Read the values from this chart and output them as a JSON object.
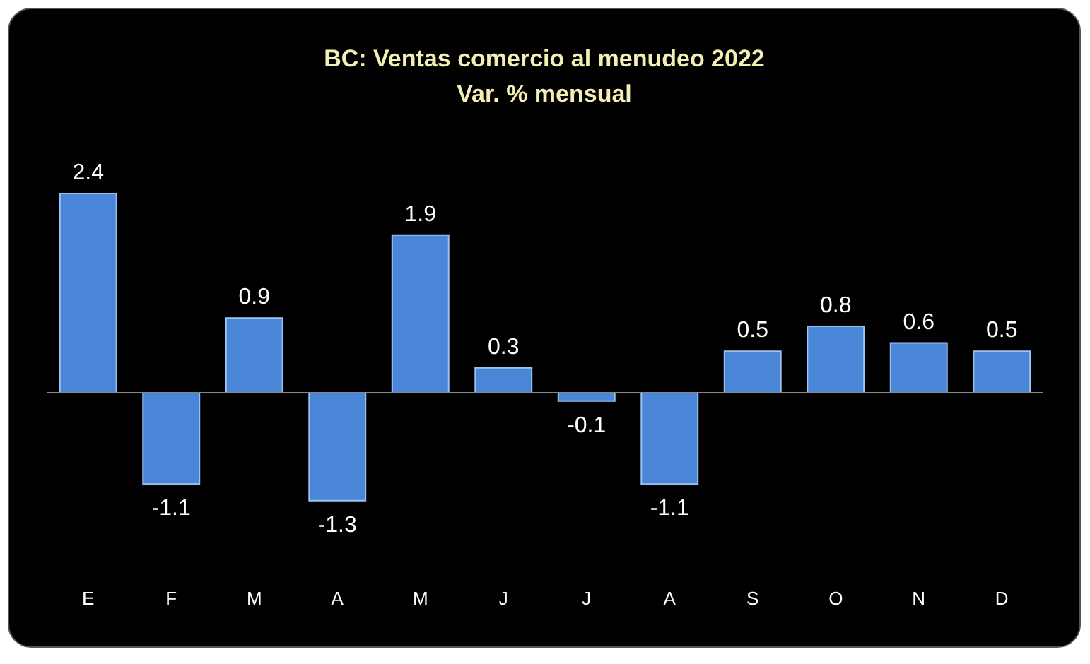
{
  "chart_data": {
    "type": "bar",
    "title": "BC: Ventas comercio al menudeo 2022",
    "subtitle": "Var. % mensual",
    "categories": [
      "E",
      "F",
      "M",
      "A",
      "M",
      "J",
      "J",
      "A",
      "S",
      "O",
      "N",
      "D"
    ],
    "values": [
      2.4,
      -1.1,
      0.9,
      -1.3,
      1.9,
      0.3,
      -0.1,
      -1.1,
      0.5,
      0.8,
      0.6,
      0.5
    ],
    "color": "#4a86d8",
    "data_labels": true
  }
}
